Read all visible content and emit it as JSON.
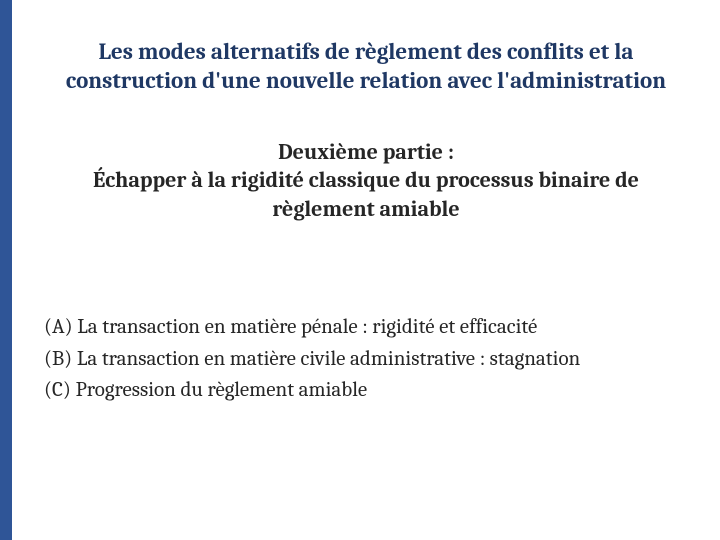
{
  "colors": {
    "sidebar": "#2f5597",
    "title": "#1f3864",
    "body_text": "#262626",
    "background": "#ffffff"
  },
  "typography": {
    "title_fontsize": 23,
    "subtitle_fontsize": 22,
    "body_fontsize": 21,
    "font_family": "Cambria / Georgia serif"
  },
  "title": "Les modes alternatifs de règlement des conflits et la construction d'une nouvelle relation avec l'administration",
  "subtitle_line1": "Deuxième partie :",
  "subtitle_line2": "Échapper à la rigidité classique du processus binaire de règlement amiable",
  "outline": [
    {
      "marker": "(A)",
      "text": "La transaction en matière pénale : rigidité et efficacité"
    },
    {
      "marker": "(B)",
      "text": "La transaction en matière civile administrative : stagnation"
    },
    {
      "marker": "(C)",
      "text": "Progression du règlement amiable"
    }
  ]
}
